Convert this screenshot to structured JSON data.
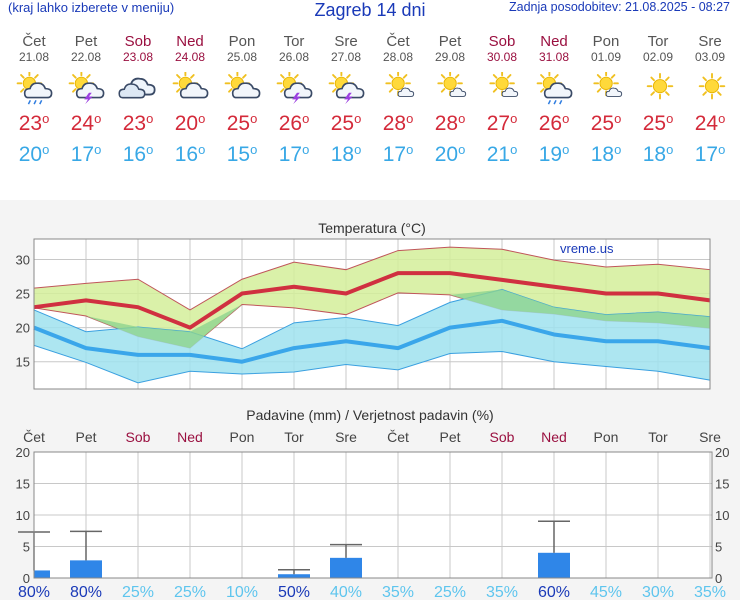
{
  "header": {
    "menu_hint": "(kraj lahko izberete v meniju)",
    "title": "Zagreb 14 dni",
    "updated": "Zadnja posodobitev: 21.08.2025 - 08:27"
  },
  "days": [
    {
      "name": "Čet",
      "date": "21.08",
      "weekend": false,
      "icon": "sun-cloud-rain-icon",
      "tmax": "23",
      "tmin": "20"
    },
    {
      "name": "Pet",
      "date": "22.08",
      "weekend": false,
      "icon": "sun-cloud-thunder-icon",
      "tmax": "24",
      "tmin": "17"
    },
    {
      "name": "Sob",
      "date": "23.08",
      "weekend": true,
      "icon": "cloud-icon",
      "tmax": "23",
      "tmin": "16"
    },
    {
      "name": "Ned",
      "date": "24.08",
      "weekend": true,
      "icon": "sun-cloud-icon",
      "tmax": "20",
      "tmin": "16"
    },
    {
      "name": "Pon",
      "date": "25.08",
      "weekend": false,
      "icon": "sun-cloud-icon",
      "tmax": "25",
      "tmin": "15"
    },
    {
      "name": "Tor",
      "date": "26.08",
      "weekend": false,
      "icon": "sun-cloud-thunder-icon",
      "tmax": "26",
      "tmin": "17"
    },
    {
      "name": "Sre",
      "date": "27.08",
      "weekend": false,
      "icon": "sun-cloud-thunder-icon",
      "tmax": "25",
      "tmin": "18"
    },
    {
      "name": "Čet",
      "date": "28.08",
      "weekend": false,
      "icon": "sun-small-cloud-icon",
      "tmax": "28",
      "tmin": "17"
    },
    {
      "name": "Pet",
      "date": "29.08",
      "weekend": false,
      "icon": "sun-small-cloud-icon",
      "tmax": "28",
      "tmin": "20"
    },
    {
      "name": "Sob",
      "date": "30.08",
      "weekend": true,
      "icon": "sun-small-cloud-icon",
      "tmax": "27",
      "tmin": "21"
    },
    {
      "name": "Ned",
      "date": "31.08",
      "weekend": true,
      "icon": "sun-cloud-rain-icon",
      "tmax": "26",
      "tmin": "19"
    },
    {
      "name": "Pon",
      "date": "01.09",
      "weekend": false,
      "icon": "sun-small-cloud-icon",
      "tmax": "25",
      "tmin": "18"
    },
    {
      "name": "Tor",
      "date": "02.09",
      "weekend": false,
      "icon": "sun-icon",
      "tmax": "25",
      "tmin": "18"
    },
    {
      "name": "Sre",
      "date": "03.09",
      "weekend": false,
      "icon": "sun-icon",
      "tmax": "24",
      "tmin": "17"
    }
  ],
  "degree_symbol": "o",
  "colors": {
    "header_blue": "#1a3ab8",
    "weekend": "#9a1040",
    "tmax": "#d42a3a",
    "tmin": "#38a8e6",
    "tmax_band": "#d4ee9a",
    "tmin_band": "#9fe2ee",
    "overlap": "#8fd48f",
    "rain_bar": "#2f86e8",
    "prob_high": "#1a3ab8",
    "prob_low": "#5ec5ee"
  },
  "chart_data": [
    {
      "type": "line",
      "title": "Temperatura (°C)",
      "watermark": "vreme.us",
      "categories": [
        "21.08",
        "22.08",
        "23.08",
        "24.08",
        "25.08",
        "26.08",
        "27.08",
        "28.08",
        "29.08",
        "30.08",
        "31.08",
        "01.09",
        "02.09",
        "03.09"
      ],
      "ylim": [
        11,
        33
      ],
      "yticks": [
        15,
        20,
        25,
        30
      ],
      "series": [
        {
          "role": "tmax",
          "values": [
            23,
            24,
            23,
            20,
            25,
            26,
            25,
            28,
            28,
            27,
            26,
            25,
            25,
            24
          ],
          "upper": [
            25.8,
            26.5,
            27.1,
            22.6,
            27.1,
            29.6,
            28.5,
            31.3,
            31.8,
            31.5,
            29.9,
            28.9,
            29.3,
            28.5
          ],
          "lower": [
            22.9,
            21.7,
            18.7,
            17.0,
            23.4,
            22.9,
            21.9,
            25.1,
            24.8,
            22.6,
            22.0,
            21.0,
            20.7,
            19.9
          ]
        },
        {
          "role": "tmin",
          "values": [
            20,
            17,
            16,
            16,
            15,
            17,
            18,
            17,
            20,
            21,
            19,
            18,
            18,
            17
          ],
          "upper": [
            22.6,
            19.4,
            20.1,
            19.4,
            16.9,
            20.7,
            21.5,
            20.3,
            23.7,
            25.6,
            23.0,
            21.9,
            22.3,
            21.6
          ],
          "lower": [
            17.4,
            14.9,
            11.9,
            13.6,
            13.2,
            13.5,
            14.6,
            13.8,
            16.2,
            16.5,
            15.0,
            14.3,
            13.6,
            12.3
          ]
        }
      ]
    },
    {
      "type": "bar",
      "title": "Padavine (mm) / Verjetnost padavin (%)",
      "categories": [
        "Čet",
        "Pet",
        "Sob",
        "Ned",
        "Pon",
        "Tor",
        "Sre",
        "Čet",
        "Pet",
        "Sob",
        "Ned",
        "Pon",
        "Tor",
        "Sre"
      ],
      "ylim": [
        0,
        20
      ],
      "yticks": [
        0,
        5,
        10,
        15,
        20
      ],
      "values": [
        1.2,
        2.8,
        0,
        0,
        0,
        0.6,
        3.2,
        0,
        0,
        0,
        4.0,
        0,
        0,
        0
      ],
      "error_high": [
        7.3,
        7.4,
        0,
        0,
        0,
        1.3,
        5.3,
        0,
        0,
        0,
        9.0,
        0,
        0,
        0
      ],
      "probability": [
        "80%",
        "80%",
        "25%",
        "25%",
        "10%",
        "50%",
        "40%",
        "35%",
        "25%",
        "35%",
        "60%",
        "45%",
        "30%",
        "35%"
      ]
    }
  ]
}
